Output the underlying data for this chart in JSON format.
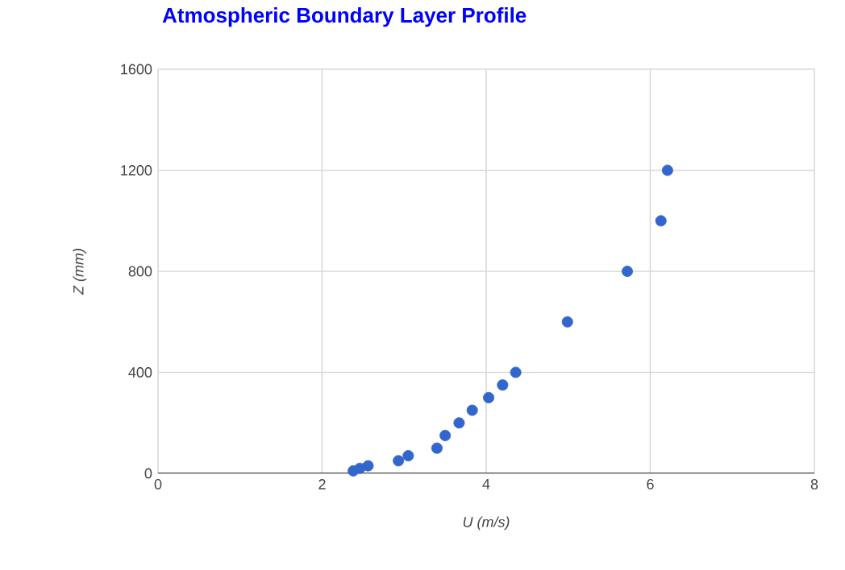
{
  "chart_data": {
    "type": "scatter",
    "title": "Atmospheric Boundary Layer Profile",
    "xlabel": "U (m/s)",
    "ylabel": "Z (mm)",
    "series": [
      {
        "color": "#3366cc",
        "x": [
          2.38,
          2.46,
          2.56,
          2.93,
          3.05,
          3.4,
          3.5,
          3.67,
          3.83,
          4.03,
          4.2,
          4.36,
          4.99,
          5.72,
          6.13,
          6.21
        ],
        "values": [
          10,
          20,
          30,
          50,
          70,
          100,
          150,
          200,
          250,
          300,
          350,
          400,
          600,
          800,
          1000,
          1200
        ]
      }
    ],
    "xlim": [
      0,
      8
    ],
    "xticks": [
      0,
      2,
      4,
      6,
      8
    ],
    "ylim": [
      0,
      1600
    ],
    "yticks": [
      0,
      400,
      800,
      1200,
      1600
    ],
    "grid": true,
    "marker": "circle"
  }
}
